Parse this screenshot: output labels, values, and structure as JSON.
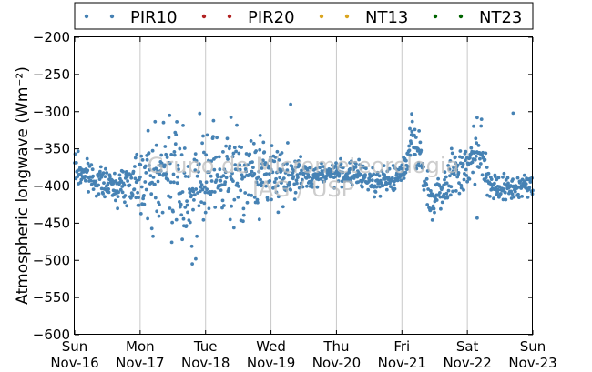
{
  "chart_data": {
    "type": "scatter",
    "title": "",
    "ylabel": "Atmospheric longwave (Wm⁻²)",
    "xlabel": "",
    "ylim": [
      -600,
      -200
    ],
    "yticks": [
      -200,
      -250,
      -300,
      -350,
      -400,
      -450,
      -500,
      -550,
      -600
    ],
    "xlim": [
      0,
      7
    ],
    "xticks": [
      {
        "pos": 0,
        "day": "Sun",
        "date": "Nov-16"
      },
      {
        "pos": 1,
        "day": "Mon",
        "date": "Nov-17"
      },
      {
        "pos": 2,
        "day": "Tue",
        "date": "Nov-18"
      },
      {
        "pos": 3,
        "day": "Wed",
        "date": "Nov-19"
      },
      {
        "pos": 4,
        "day": "Thu",
        "date": "Nov-20"
      },
      {
        "pos": 5,
        "day": "Fri",
        "date": "Nov-21"
      },
      {
        "pos": 6,
        "day": "Sat",
        "date": "Nov-22"
      },
      {
        "pos": 7,
        "day": "Sun",
        "date": "Nov-23"
      }
    ],
    "grid": "vertical",
    "legend_position": "top",
    "watermark": [
      "Grupo de Micrometeorologia",
      "IAG / USP"
    ],
    "series": [
      {
        "name": "PIR10",
        "color": "#4682b4",
        "baseline": [
          [
            0.0,
            -378
          ],
          [
            0.15,
            -383
          ],
          [
            0.3,
            -390
          ],
          [
            0.5,
            -398
          ],
          [
            0.7,
            -400
          ],
          [
            0.9,
            -392
          ],
          [
            1.0,
            -385
          ],
          [
            1.2,
            -393
          ],
          [
            1.4,
            -382
          ],
          [
            1.6,
            -395
          ],
          [
            1.75,
            -410
          ],
          [
            1.9,
            -400
          ],
          [
            2.1,
            -392
          ],
          [
            2.3,
            -387
          ],
          [
            2.5,
            -385
          ],
          [
            2.7,
            -385
          ],
          [
            2.9,
            -384
          ],
          [
            3.1,
            -383
          ],
          [
            3.3,
            -385
          ],
          [
            3.5,
            -388
          ],
          [
            3.7,
            -385
          ],
          [
            3.9,
            -382
          ],
          [
            4.1,
            -383
          ],
          [
            4.3,
            -385
          ],
          [
            4.5,
            -390
          ],
          [
            4.65,
            -395
          ],
          [
            4.8,
            -392
          ],
          [
            4.95,
            -390
          ],
          [
            5.05,
            -370
          ],
          [
            5.15,
            -330
          ],
          [
            5.25,
            -350
          ],
          [
            5.35,
            -395
          ],
          [
            5.45,
            -420
          ],
          [
            5.55,
            -410
          ],
          [
            5.65,
            -395
          ],
          [
            5.8,
            -380
          ],
          [
            5.95,
            -375
          ],
          [
            6.05,
            -370
          ],
          [
            6.15,
            -350
          ],
          [
            6.25,
            -370
          ],
          [
            6.35,
            -395
          ],
          [
            6.45,
            -400
          ],
          [
            6.6,
            -405
          ],
          [
            6.8,
            -400
          ],
          [
            7.0,
            -400
          ]
        ],
        "noise": [
          [
            0.0,
            15
          ],
          [
            0.5,
            10
          ],
          [
            0.8,
            14
          ],
          [
            1.0,
            30
          ],
          [
            1.3,
            40
          ],
          [
            1.6,
            45
          ],
          [
            1.8,
            50
          ],
          [
            2.0,
            35
          ],
          [
            2.3,
            40
          ],
          [
            2.5,
            35
          ],
          [
            2.8,
            30
          ],
          [
            3.0,
            25
          ],
          [
            3.3,
            22
          ],
          [
            3.5,
            12
          ],
          [
            3.8,
            8
          ],
          [
            4.2,
            10
          ],
          [
            4.5,
            12
          ],
          [
            4.8,
            8
          ],
          [
            5.0,
            12
          ],
          [
            5.2,
            20
          ],
          [
            5.4,
            15
          ],
          [
            5.7,
            18
          ],
          [
            6.0,
            20
          ],
          [
            6.2,
            25
          ],
          [
            6.4,
            12
          ],
          [
            6.7,
            10
          ],
          [
            7.0,
            8
          ]
        ]
      },
      {
        "name": "PIR20",
        "color": "#b22222"
      },
      {
        "name": "NT13",
        "color": "#daa520"
      },
      {
        "name": "NT23",
        "color": "#006400"
      }
    ]
  }
}
